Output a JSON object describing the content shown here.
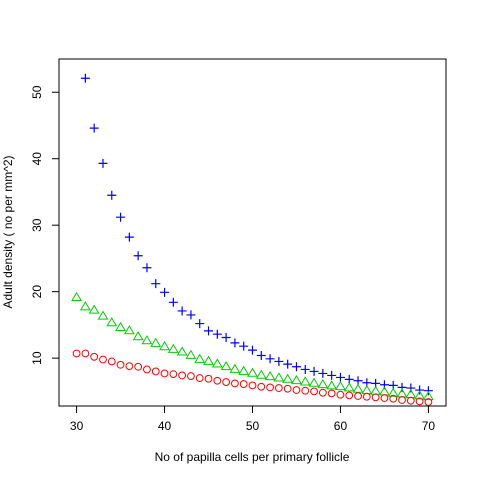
{
  "chart_data": {
    "type": "scatter",
    "title": "",
    "xlabel": "No of papilla cells per primary follicle",
    "ylabel": "Adult density ( no per mm^2)",
    "xlim": [
      28,
      72
    ],
    "ylim": [
      2.8,
      55
    ],
    "xticks": [
      30,
      40,
      50,
      60,
      70
    ],
    "yticks": [
      10,
      20,
      30,
      40,
      50
    ],
    "grid": false,
    "legend": "none",
    "series": [
      {
        "marker": "plus",
        "color": "#0000ff",
        "x": [
          31,
          32,
          33,
          34,
          35,
          36,
          37,
          38,
          39,
          40,
          41,
          42,
          43,
          44,
          45,
          46,
          47,
          48,
          49,
          50,
          51,
          52,
          53,
          54,
          55,
          56,
          57,
          58,
          59,
          60,
          61,
          62,
          63,
          64,
          65,
          66,
          67,
          68,
          69,
          70
        ],
        "y": [
          52.1,
          44.6,
          39.3,
          34.5,
          31.2,
          28.2,
          25.4,
          23.6,
          21.2,
          19.9,
          18.4,
          17.1,
          16.5,
          15.2,
          14.1,
          13.6,
          13.1,
          12.3,
          11.8,
          11.2,
          10.4,
          9.9,
          9.5,
          9.1,
          8.7,
          8.3,
          8.0,
          7.7,
          7.4,
          7.1,
          6.8,
          6.6,
          6.3,
          6.2,
          6.0,
          5.9,
          5.6,
          5.5,
          5.2,
          5.1
        ]
      },
      {
        "marker": "triangle",
        "color": "#00cd00",
        "x": [
          30,
          31,
          32,
          33,
          34,
          35,
          36,
          37,
          38,
          39,
          40,
          41,
          42,
          43,
          44,
          45,
          46,
          47,
          48,
          49,
          50,
          51,
          52,
          53,
          54,
          55,
          56,
          57,
          58,
          59,
          60,
          61,
          62,
          63,
          64,
          65,
          66,
          67,
          68,
          69,
          70
        ],
        "y": [
          19.1,
          17.7,
          17.2,
          16.3,
          15.3,
          14.6,
          14.1,
          13.2,
          12.6,
          12.2,
          11.7,
          11.3,
          10.9,
          10.4,
          9.8,
          9.5,
          9.1,
          8.7,
          8.3,
          8.0,
          7.7,
          7.4,
          7.2,
          7.0,
          6.8,
          6.6,
          6.4,
          6.2,
          6.0,
          5.8,
          5.7,
          5.5,
          5.3,
          5.1,
          5.0,
          4.9,
          4.7,
          4.6,
          4.5,
          4.3,
          4.2
        ]
      },
      {
        "marker": "circle",
        "color": "#ff0000",
        "x": [
          30,
          31,
          32,
          33,
          34,
          35,
          36,
          37,
          38,
          39,
          40,
          41,
          42,
          43,
          44,
          45,
          46,
          47,
          48,
          49,
          50,
          51,
          52,
          53,
          54,
          55,
          56,
          57,
          58,
          59,
          60,
          61,
          62,
          63,
          64,
          65,
          66,
          67,
          68,
          69,
          70
        ],
        "y": [
          10.7,
          10.7,
          10.2,
          9.8,
          9.5,
          9.0,
          8.8,
          8.7,
          8.3,
          8.0,
          7.7,
          7.6,
          7.4,
          7.3,
          7.0,
          6.9,
          6.6,
          6.4,
          6.2,
          6.1,
          5.9,
          5.7,
          5.6,
          5.5,
          5.4,
          5.2,
          5.1,
          5.0,
          4.8,
          4.7,
          4.5,
          4.4,
          4.3,
          4.2,
          4.1,
          4.0,
          3.9,
          3.7,
          3.6,
          3.5,
          3.4
        ]
      }
    ]
  }
}
